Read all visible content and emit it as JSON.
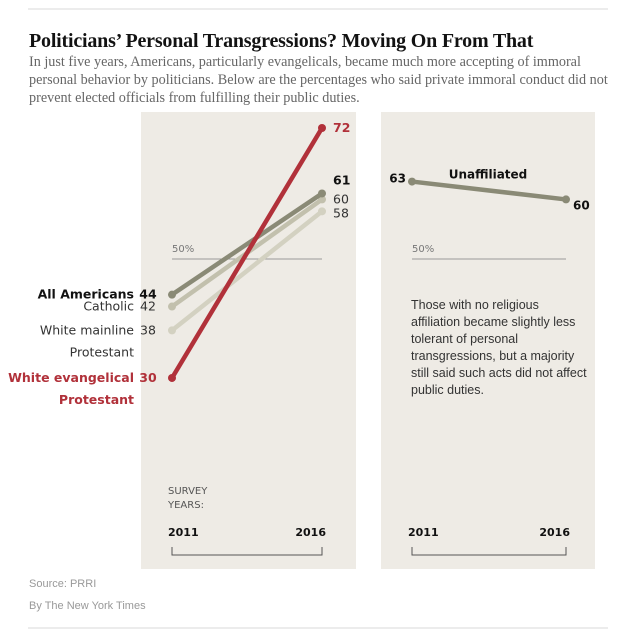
{
  "header": {
    "title": "Politicians’ Personal Transgressions? Moving On From That",
    "subtitle": "In just five years, Americans, particularly evangelicals, became much more accepting of immoral personal behavior by politicians. Below are the percentages who said private immoral conduct did not prevent elected officials from fulfilling their public duties."
  },
  "footer": {
    "source": "Source: PRRI",
    "credit": "By The New York Times"
  },
  "colors": {
    "panel": "#eeebe5",
    "evangelical": "#b1313a",
    "all_americans": "#8a8a76",
    "catholic": "#c2c0ad",
    "mainline": "#d3d1c1",
    "unaffiliated": "#8a8a76"
  },
  "chart_data": [
    {
      "type": "line",
      "title": "",
      "x": [
        "2011",
        "2016"
      ],
      "xlabel": "SURVEY YEARS:",
      "ylabel": "",
      "ylim": [
        30,
        72
      ],
      "reference_line": {
        "value": 50,
        "label": "50%"
      },
      "series": [
        {
          "name": "White mainline Protestant",
          "name_lines": [
            "White mainline",
            "Protestant"
          ],
          "values": [
            38,
            58
          ],
          "start_label": "38",
          "end_label": "58",
          "color": "#d3d1c1",
          "label_color": "#333333",
          "bold": false
        },
        {
          "name": "Catholic",
          "name_lines": [
            "Catholic"
          ],
          "values": [
            42,
            60
          ],
          "start_label": "42",
          "end_label": "60",
          "color": "#c2c0ad",
          "label_color": "#333333",
          "bold": false
        },
        {
          "name": "All Americans",
          "name_lines": [
            "All Americans"
          ],
          "values": [
            44,
            61
          ],
          "start_label": "44",
          "end_label": "61",
          "color": "#8a8a76",
          "label_color": "#111111",
          "bold": true
        },
        {
          "name": "White evangelical Protestant",
          "name_lines": [
            "White evangelical",
            "Protestant"
          ],
          "values": [
            30,
            72
          ],
          "start_label": "30",
          "end_label": "72",
          "color": "#b1313a",
          "label_color": "#b1313a",
          "bold": true
        }
      ]
    },
    {
      "type": "line",
      "title": "Unaffiliated",
      "x": [
        "2011",
        "2016"
      ],
      "xlabel": "",
      "ylabel": "",
      "ylim": [
        30,
        72
      ],
      "reference_line": {
        "value": 50,
        "label": "50%"
      },
      "series": [
        {
          "name": "Unaffiliated",
          "values": [
            63,
            60
          ],
          "start_label": "63",
          "end_label": "60",
          "color": "#8a8a76",
          "label_color": "#111111",
          "bold": true
        }
      ],
      "annotation": "Those with no religious affiliation became slightly less tolerant of personal transgressions, but a majority still said such acts did not affect public duties."
    }
  ]
}
